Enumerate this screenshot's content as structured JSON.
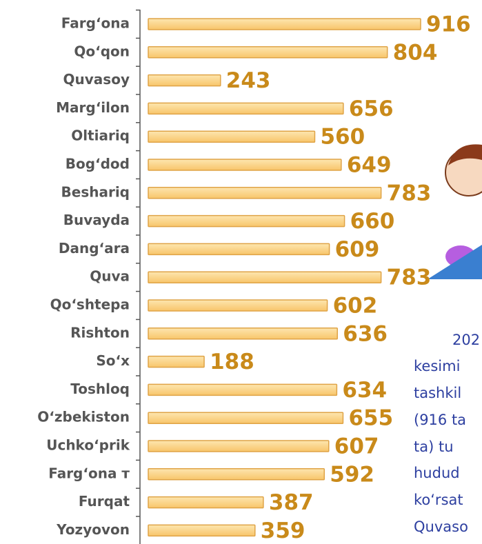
{
  "chart_data": {
    "type": "bar",
    "orientation": "horizontal",
    "categories": [
      "Fargʻona",
      "Qoʻqon",
      "Quvasoy",
      "Margʻilon",
      "Oltiariq",
      "Bogʻdod",
      "Beshariq",
      "Buvayda",
      "Dangʻara",
      "Quva",
      "Qoʻshtepa",
      "Rishton",
      "Soʻx",
      "Toshloq",
      "Oʻzbekiston",
      "Uchkoʻprik",
      "Fargʻona т",
      "Furqat",
      "Yozyovon"
    ],
    "values": [
      916,
      804,
      243,
      656,
      560,
      649,
      783,
      660,
      609,
      783,
      602,
      636,
      188,
      634,
      655,
      607,
      592,
      387,
      359
    ],
    "color": "#fcd488"
  },
  "side_text": [
    "202",
    "kesimi",
    "tashkil",
    "(916 ta",
    "ta) tu",
    "hudud",
    "koʻrsat",
    "Quvaso"
  ]
}
